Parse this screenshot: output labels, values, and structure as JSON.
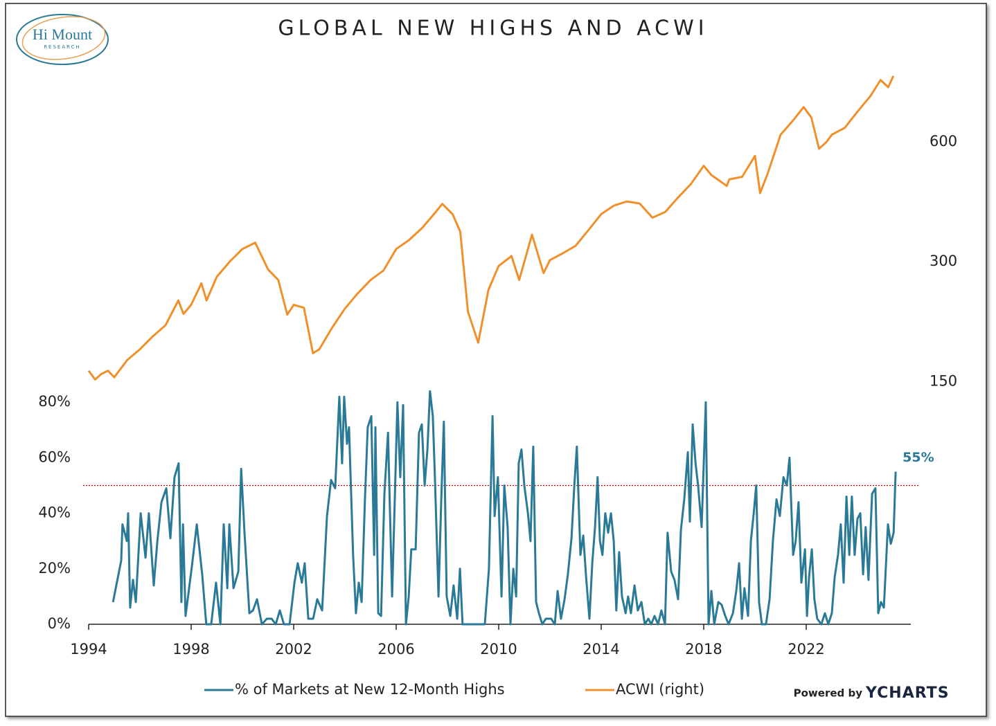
{
  "logo": {
    "name": "Hi Mount",
    "sub": "RESEARCH"
  },
  "credit": {
    "prefix": "Powered by",
    "brand": "YCHARTS"
  },
  "chart_data": {
    "type": "line",
    "title": "GLOBAL NEW HIGHS AND ACWI",
    "xlim": [
      1994,
      2026
    ],
    "xticks": [
      1994,
      1998,
      2002,
      2006,
      2010,
      2014,
      2018,
      2022
    ],
    "ylim": [
      0,
      200
    ],
    "yticks": [
      {
        "value": 0,
        "label": "0%"
      },
      {
        "value": 20,
        "label": "20%"
      },
      {
        "value": 40,
        "label": "40%"
      },
      {
        "value": 60,
        "label": "60%"
      },
      {
        "value": 80,
        "label": "80%"
      }
    ],
    "y2lim": [
      37,
      912
    ],
    "y2scale": "log",
    "y2ticks": [
      150,
      300,
      600
    ],
    "threshold": 50,
    "threshold_color": "#c00000",
    "annotation": {
      "value": 55,
      "label": "55%"
    },
    "series": [
      {
        "name": "% of Markets at New 12-Month Highs",
        "color": "#2a7a97",
        "x": [
          1994.95,
          1995.27,
          1995.32,
          1995.49,
          1995.54,
          1995.62,
          1995.73,
          1995.84,
          1996.03,
          1996.22,
          1996.35,
          1996.54,
          1996.68,
          1996.84,
          1997.03,
          1997.19,
          1997.35,
          1997.51,
          1997.62,
          1997.68,
          1997.78,
          1998.03,
          1998.22,
          1998.43,
          1998.59,
          1998.78,
          1998.97,
          1999.14,
          1999.27,
          1999.41,
          1999.49,
          1999.65,
          1999.84,
          1999.95,
          2000.08,
          2000.27,
          2000.41,
          2000.57,
          2000.76,
          2000.95,
          2001.14,
          2001.3,
          2001.46,
          2001.62,
          2001.84,
          2002.03,
          2002.16,
          2002.32,
          2002.43,
          2002.57,
          2002.76,
          2002.92,
          2003.11,
          2003.3,
          2003.46,
          2003.62,
          2003.78,
          2003.89,
          2003.97,
          2004.08,
          2004.16,
          2004.32,
          2004.43,
          2004.54,
          2004.65,
          2004.78,
          2004.89,
          2005.03,
          2005.14,
          2005.19,
          2005.3,
          2005.41,
          2005.54,
          2005.68,
          2005.84,
          2005.95,
          2006.05,
          2006.16,
          2006.27,
          2006.38,
          2006.49,
          2006.59,
          2006.76,
          2006.89,
          2007.0,
          2007.11,
          2007.22,
          2007.32,
          2007.43,
          2007.51,
          2007.65,
          2007.76,
          2007.86,
          2007.97,
          2008.11,
          2008.24,
          2008.38,
          2008.49,
          2008.59,
          2009.46,
          2009.62,
          2009.76,
          2009.84,
          2009.97,
          2010.11,
          2010.22,
          2010.35,
          2010.46,
          2010.57,
          2010.68,
          2010.78,
          2010.89,
          2011.0,
          2011.14,
          2011.24,
          2011.35,
          2011.46,
          2011.57,
          2011.7,
          2011.84,
          2012.05,
          2012.19,
          2012.3,
          2012.43,
          2012.57,
          2012.7,
          2012.84,
          2012.95,
          2013.05,
          2013.19,
          2013.3,
          2013.41,
          2013.54,
          2013.65,
          2013.76,
          2013.86,
          2013.95,
          2014.05,
          2014.16,
          2014.27,
          2014.38,
          2014.49,
          2014.59,
          2014.7,
          2014.81,
          2014.95,
          2015.05,
          2015.16,
          2015.3,
          2015.43,
          2015.57,
          2015.7,
          2015.84,
          2015.95,
          2016.08,
          2016.22,
          2016.35,
          2016.49,
          2016.59,
          2016.73,
          2016.86,
          2017.0,
          2017.11,
          2017.24,
          2017.38,
          2017.46,
          2017.57,
          2017.68,
          2017.78,
          2017.92,
          2018.08,
          2018.19,
          2018.3,
          2018.41,
          2018.57,
          2018.7,
          2018.84,
          2018.97,
          2019.14,
          2019.27,
          2019.38,
          2019.49,
          2019.59,
          2019.73,
          2019.84,
          2019.95,
          2020.05,
          2020.16,
          2020.27,
          2020.43,
          2020.57,
          2020.7,
          2020.84,
          2020.97,
          2021.11,
          2021.24,
          2021.35,
          2021.49,
          2021.59,
          2021.7,
          2021.81,
          2021.95,
          2022.03,
          2022.11,
          2022.22,
          2022.32,
          2022.43,
          2022.59,
          2022.73,
          2022.86,
          2023.0,
          2023.11,
          2023.24,
          2023.35,
          2023.46,
          2023.57,
          2023.68,
          2023.78,
          2023.89,
          2024.0,
          2024.11,
          2024.22,
          2024.32,
          2024.43,
          2024.57,
          2024.7,
          2024.81,
          2024.92,
          2025.03,
          2025.19,
          2025.3,
          2025.41,
          2025.49
        ],
        "values": [
          8,
          23,
          36,
          30,
          40,
          6,
          16,
          8,
          40,
          24,
          40,
          14,
          30,
          44,
          49,
          31,
          53,
          58,
          8,
          36,
          3,
          21,
          36,
          18,
          0,
          0,
          15,
          0,
          36,
          13,
          36,
          13,
          19,
          56,
          33,
          4,
          5,
          9,
          0,
          2,
          2,
          0,
          5,
          0,
          0,
          15,
          22,
          15,
          22,
          2,
          2,
          9,
          5,
          39,
          52,
          49,
          82,
          58,
          82,
          65,
          71,
          25,
          4,
          15,
          8,
          45,
          71,
          75,
          25,
          71,
          4,
          3,
          47,
          69,
          10,
          47,
          80,
          53,
          79,
          0,
          10,
          27,
          27,
          69,
          72,
          50,
          63,
          84,
          75,
          53,
          10,
          45,
          73,
          10,
          3,
          14,
          2,
          20,
          0,
          0,
          20,
          75,
          39,
          53,
          10,
          50,
          35,
          0,
          20,
          10,
          58,
          63,
          50,
          40,
          30,
          64,
          8,
          4,
          0,
          2,
          2,
          0,
          12,
          2,
          9,
          18,
          31,
          50,
          64,
          25,
          32,
          17,
          2,
          22,
          35,
          53,
          30,
          25,
          40,
          33,
          40,
          30,
          5,
          26,
          10,
          4,
          10,
          4,
          14,
          5,
          8,
          0,
          2,
          0,
          3,
          0,
          5,
          0,
          33,
          19,
          16,
          9,
          34,
          45,
          62,
          37,
          72,
          58,
          50,
          35,
          80,
          0,
          12,
          0,
          8,
          7,
          3,
          0,
          4,
          12,
          22,
          2,
          13,
          3,
          30,
          40,
          50,
          8,
          0,
          0,
          9,
          30,
          45,
          39,
          53,
          50,
          60,
          25,
          30,
          44,
          15,
          27,
          3,
          17,
          27,
          9,
          2,
          0,
          4,
          0,
          4,
          17,
          25,
          36,
          15,
          46,
          25,
          46,
          25,
          38,
          40,
          18,
          35,
          16,
          47,
          49,
          4,
          8,
          6,
          36,
          29,
          33,
          55
        ]
      },
      {
        "name": "ACWI (right)",
        "color": "#f0902a",
        "axis": "y2",
        "x": [
          1994.0,
          1994.25,
          1994.5,
          1994.75,
          1995.0,
          1995.5,
          1996.0,
          1996.5,
          1997.0,
          1997.5,
          1997.7,
          1998.0,
          1998.4,
          1998.6,
          1999.0,
          1999.5,
          2000.0,
          2000.5,
          2001.0,
          2001.4,
          2001.75,
          2002.0,
          2002.4,
          2002.75,
          2003.0,
          2003.5,
          2004.0,
          2004.5,
          2005.0,
          2005.5,
          2006.0,
          2006.5,
          2007.0,
          2007.4,
          2007.8,
          2008.2,
          2008.5,
          2008.8,
          2009.2,
          2009.6,
          2010.0,
          2010.5,
          2010.8,
          2011.3,
          2011.75,
          2012.0,
          2012.5,
          2013.0,
          2013.5,
          2014.0,
          2014.5,
          2015.0,
          2015.5,
          2016.0,
          2016.5,
          2017.0,
          2017.5,
          2018.0,
          2018.3,
          2018.9,
          2019.0,
          2019.5,
          2020.0,
          2020.2,
          2020.5,
          2021.0,
          2021.5,
          2021.9,
          2022.2,
          2022.5,
          2022.8,
          2023.0,
          2023.5,
          2024.0,
          2024.5,
          2024.9,
          2025.2,
          2025.4
        ],
        "values": [
          160,
          152,
          157,
          160,
          154,
          170,
          181,
          195,
          208,
          240,
          222,
          234,
          265,
          240,
          275,
          300,
          323,
          335,
          287,
          270,
          221,
          234,
          230,
          177,
          181,
          205,
          229,
          250,
          270,
          285,
          323,
          340,
          364,
          390,
          419,
          395,
          357,
          225,
          188,
          255,
          293,
          310,
          270,
          351,
          281,
          303,
          315,
          329,
          360,
          395,
          415,
          425,
          420,
          387,
          400,
          435,
          470,
          522,
          495,
          465,
          483,
          490,
          553,
          446,
          500,
          625,
          680,
          733,
          690,
          576,
          600,
          625,
          650,
          714,
          780,
          857,
          822,
          877
        ]
      }
    ]
  }
}
